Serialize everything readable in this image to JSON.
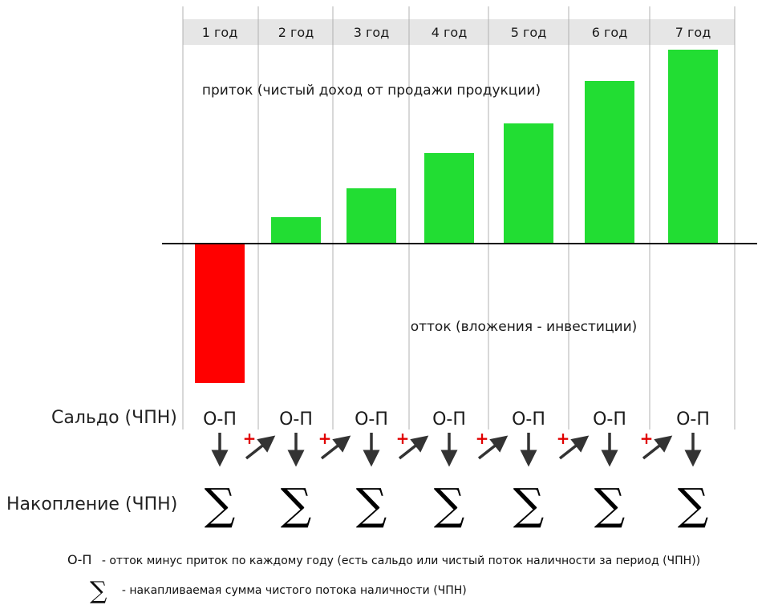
{
  "years": [
    "1 год",
    "2 год",
    "3 год",
    "4 год",
    "5 год",
    "6 год",
    "7 год"
  ],
  "labels": {
    "inflow": "приток (чистый доход от продажи продукции)",
    "outflow": "отток (вложения - инвестиции)",
    "balance_row": "Сальдо (ЧПН)",
    "accumulation_row": "Накопление (ЧПН)",
    "cell_formula": "О-П",
    "plus": "+",
    "sigma": "∑"
  },
  "legend": {
    "op_key": "О-П",
    "op_text": "- отток минус приток по каждому году (есть сальдо или чистый поток наличности за период (ЧПН))",
    "sigma_key": "∑",
    "sigma_text": "- накапливаемая сумма чистого потока наличности (ЧПН)"
  },
  "colors": {
    "inflow": "#22dd33",
    "outflow": "#ff0000",
    "header_band": "#e6e6e6",
    "grid": "#b0b0b0",
    "plus": "#e00000",
    "arrow": "#333333"
  },
  "chart_data": {
    "type": "bar",
    "categories": [
      "1 год",
      "2 год",
      "3 год",
      "4 год",
      "5 год",
      "6 год",
      "7 год"
    ],
    "values": [
      -174,
      33,
      69,
      113,
      150,
      203,
      242
    ],
    "ylim": [
      -174,
      242
    ],
    "grid": true
  }
}
